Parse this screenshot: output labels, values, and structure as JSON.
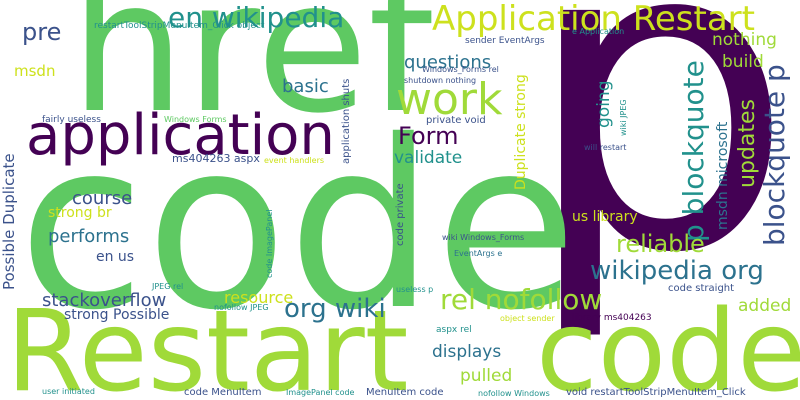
{
  "palette": {
    "dark_purple": "#440154",
    "indigo": "#3b528b",
    "teal": "#21918c",
    "green": "#5ec962",
    "lime": "#a0da39",
    "yellow": "#cde11d",
    "blue_teal": "#2c728e"
  },
  "words": [
    {
      "text": "p"
    },
    {
      "text": "code"
    },
    {
      "text": "href"
    },
    {
      "text": "Restart"
    },
    {
      "text": "code"
    },
    {
      "text": "application"
    },
    {
      "text": "work"
    },
    {
      "text": "Application Restart"
    },
    {
      "text": "en wikipedia"
    },
    {
      "text": "p blockquote"
    },
    {
      "text": "blockquote p"
    },
    {
      "text": "wikipedia org"
    },
    {
      "text": "rel nofollow"
    },
    {
      "text": "org wiki"
    },
    {
      "text": "Form"
    },
    {
      "text": "reliable"
    },
    {
      "text": "updates"
    },
    {
      "text": "pre"
    },
    {
      "text": "course"
    },
    {
      "text": "performs"
    },
    {
      "text": "stackoverflow"
    },
    {
      "text": "questions"
    },
    {
      "text": "basic"
    },
    {
      "text": "validate"
    },
    {
      "text": "going"
    },
    {
      "text": "build"
    },
    {
      "text": "nothing"
    },
    {
      "text": "displays"
    },
    {
      "text": "pulled"
    },
    {
      "text": "resource"
    },
    {
      "text": "added"
    },
    {
      "text": "msdn"
    },
    {
      "text": "Possible Duplicate"
    },
    {
      "text": "Duplicate strong"
    },
    {
      "text": "msdn microsoft"
    },
    {
      "text": "strong br"
    },
    {
      "text": "en us"
    },
    {
      "text": "strong Possible"
    },
    {
      "text": "us library"
    },
    {
      "text": "code straight"
    },
    {
      "text": "ms404263 aspx"
    },
    {
      "text": "application shuts"
    },
    {
      "text": "code private"
    },
    {
      "text": "restartToolStripMenuItem_Click object"
    },
    {
      "text": "e Application"
    },
    {
      "text": "sender EventArgs"
    },
    {
      "text": "Windows_Forms rel"
    },
    {
      "text": "shutdown nothing"
    },
    {
      "text": "private void"
    },
    {
      "text": "fairly useless"
    },
    {
      "text": "Windows Forms"
    },
    {
      "text": "event handlers"
    },
    {
      "text": "code ImagePanel"
    },
    {
      "text": "wiki JPEG"
    },
    {
      "text": "will restart"
    },
    {
      "text": "wiki Windows_Forms"
    },
    {
      "text": "EventArgs e"
    },
    {
      "text": "JPEG rel"
    },
    {
      "text": "nofollow JPEG"
    },
    {
      "text": "useless p"
    },
    {
      "text": "object sender"
    },
    {
      "text": "library ms404263"
    },
    {
      "text": "aspx rel"
    },
    {
      "text": "user initiated"
    },
    {
      "text": "code MenuItem"
    },
    {
      "text": "ImagePanel code"
    },
    {
      "text": "MenuItem code"
    },
    {
      "text": "nofollow Windows"
    },
    {
      "text": "void restartToolStripMenuItem_Click"
    }
  ]
}
